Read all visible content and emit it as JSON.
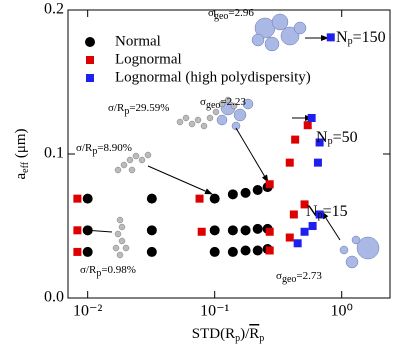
{
  "chart_data": {
    "type": "scatter",
    "log_x": true,
    "xlabel": {
      "main": "STD(R",
      "sub": "p",
      "mid": ")/",
      "over": "R",
      "sub2": "p"
    },
    "ylabel": {
      "main": "a",
      "sub": "eff",
      "rest": " (μm)"
    },
    "xlim": [
      0.007,
      2.4
    ],
    "ylim": [
      0,
      0.2
    ],
    "xticks": [
      {
        "value": 0.01,
        "label": "10⁻²"
      },
      {
        "value": 0.1,
        "label": "10⁻¹"
      },
      {
        "value": 1,
        "label": "10⁰"
      }
    ],
    "yticks": [
      {
        "value": 0,
        "label": "0.0"
      },
      0.1,
      0.2
    ],
    "legend": "upper left",
    "series": [
      {
        "name": "Normal",
        "color": "#000000",
        "marker": "circle",
        "x": [
          0.01,
          0.032,
          0.1,
          0.139,
          0.175,
          0.218,
          0.261,
          0.01,
          0.032,
          0.1,
          0.139,
          0.175,
          0.218,
          0.261,
          0.01,
          0.032,
          0.1,
          0.139,
          0.175,
          0.218,
          0.261
        ],
        "values": [
          0.032,
          0.032,
          0.032,
          0.032,
          0.033,
          0.033,
          0.034,
          0.047,
          0.047,
          0.047,
          0.047,
          0.047,
          0.048,
          0.048,
          0.069,
          0.069,
          0.069,
          0.072,
          0.073,
          0.075,
          0.077
        ]
      },
      {
        "name": "Lognormal",
        "color": "#dd0000",
        "marker": "square",
        "x": [
          0.0083,
          0.0083,
          0.0083,
          0.079,
          0.076,
          0.271,
          0.271,
          0.271,
          0.39,
          0.42,
          0.39,
          0.43,
          0.54,
          0.51
        ],
        "values": [
          0.069,
          0.047,
          0.032,
          0.046,
          0.069,
          0.079,
          0.046,
          0.033,
          0.094,
          0.058,
          0.042,
          0.11,
          0.12,
          0.065
        ]
      },
      {
        "name": "Lognormal (high polydispersity)",
        "color": "#2020ee",
        "marker": "square",
        "x": [
          0.82,
          0.58,
          0.67,
          0.65,
          0.45,
          0.51,
          0.59,
          0.67
        ],
        "values": [
          0.181,
          0.125,
          0.108,
          0.094,
          0.038,
          0.046,
          0.05,
          0.058
        ]
      }
    ],
    "annotations": [
      {
        "main": "σ",
        "sub": "geo",
        "rest": "=2.96"
      },
      {
        "main": "N",
        "sub": "p",
        "rest": "=150"
      },
      {
        "main": "σ/R",
        "sub": "p",
        "rest": "=29.59%"
      },
      {
        "main": "σ",
        "sub": "geo",
        "rest": "=2.23"
      },
      {
        "main": "N",
        "sub": "p",
        "rest": "=50"
      },
      {
        "main": "σ/R",
        "sub": "p",
        "rest": "=8.90%"
      },
      {
        "main": "N",
        "sub": "p",
        "rest": "=15"
      },
      {
        "main": "σ/R",
        "sub": "p",
        "rest": "=0.98%"
      },
      {
        "main": "σ",
        "sub": "geo",
        "rest": "=2.73"
      }
    ]
  }
}
